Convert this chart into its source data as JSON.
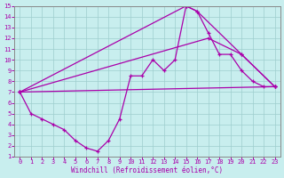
{
  "xlabel": "Windchill (Refroidissement éolien,°C)",
  "xlim": [
    -0.5,
    23.5
  ],
  "ylim": [
    1,
    15
  ],
  "xticks": [
    0,
    1,
    2,
    3,
    4,
    5,
    6,
    7,
    8,
    9,
    10,
    11,
    12,
    13,
    14,
    15,
    16,
    17,
    18,
    19,
    20,
    21,
    22,
    23
  ],
  "yticks": [
    1,
    2,
    3,
    4,
    5,
    6,
    7,
    8,
    9,
    10,
    11,
    12,
    13,
    14,
    15
  ],
  "color": "#aa00aa",
  "bg_color": "#c8eeee",
  "grid_color": "#9ecece",
  "lines": [
    {
      "x": [
        0,
        1,
        2,
        3,
        4,
        5,
        6,
        7,
        8,
        9,
        10,
        11,
        12,
        13,
        14,
        15,
        16,
        17,
        18,
        19,
        20,
        21,
        22,
        23
      ],
      "y": [
        7,
        5,
        4.5,
        4,
        3.5,
        2.5,
        1.8,
        1.5,
        2.5,
        4.5,
        8.5,
        8.5,
        10,
        9,
        10,
        15,
        14.5,
        12.5,
        10.5,
        10.5,
        9,
        8,
        7.5,
        7.5
      ]
    },
    {
      "x": [
        0,
        15,
        16,
        20,
        23
      ],
      "y": [
        7,
        15,
        14.5,
        10.5,
        7.5
      ]
    },
    {
      "x": [
        0,
        17,
        20,
        23
      ],
      "y": [
        7,
        12,
        10.5,
        7.5
      ]
    },
    {
      "x": [
        0,
        23
      ],
      "y": [
        7,
        7.5
      ]
    }
  ]
}
